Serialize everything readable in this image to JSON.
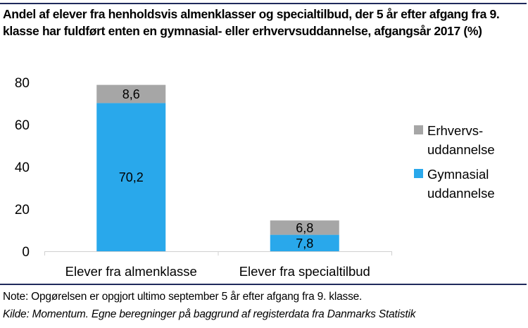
{
  "chart_data": {
    "type": "bar",
    "stacked": true,
    "title": "Andel af elever fra henholdsvis almenklasser og specialtilbud, der 5 år efter afgang fra 9. klasse har fuldført enten en gymnasial- eller erhvervsuddannelse, afgangsår 2017 (%)",
    "xlabel": "",
    "ylabel": "",
    "categories": [
      "Elever fra almenklasse",
      "Elever fra specialtilbud"
    ],
    "series": [
      {
        "name": "Gymnasial uddannelse",
        "legend_lines": [
          "Gymnasial",
          "uddannelse"
        ],
        "color": "#29a8eb",
        "values": [
          70.2,
          7.8
        ],
        "labels": [
          "70,2",
          "7,8"
        ]
      },
      {
        "name": "Erhvervs-uddannelse",
        "legend_lines": [
          "Erhvervs-",
          "uddannelse"
        ],
        "color": "#a6a6a6",
        "values": [
          8.6,
          6.8
        ],
        "labels": [
          "8,6",
          "6,8"
        ]
      }
    ],
    "ylim": [
      0,
      80
    ],
    "yticks": [
      0,
      20,
      40,
      60,
      80
    ],
    "ytick_labels": [
      "0",
      "20",
      "40",
      "60",
      "80"
    ],
    "grid": false,
    "legend_position": "right"
  },
  "footer": {
    "note": "Note: Opgørelsen er opgjort ultimo september 5 år efter afgang fra 9. klasse.",
    "source": "Kilde: Momentum. Egne beregninger på baggrund af registerdata fra Danmarks Statistik"
  }
}
